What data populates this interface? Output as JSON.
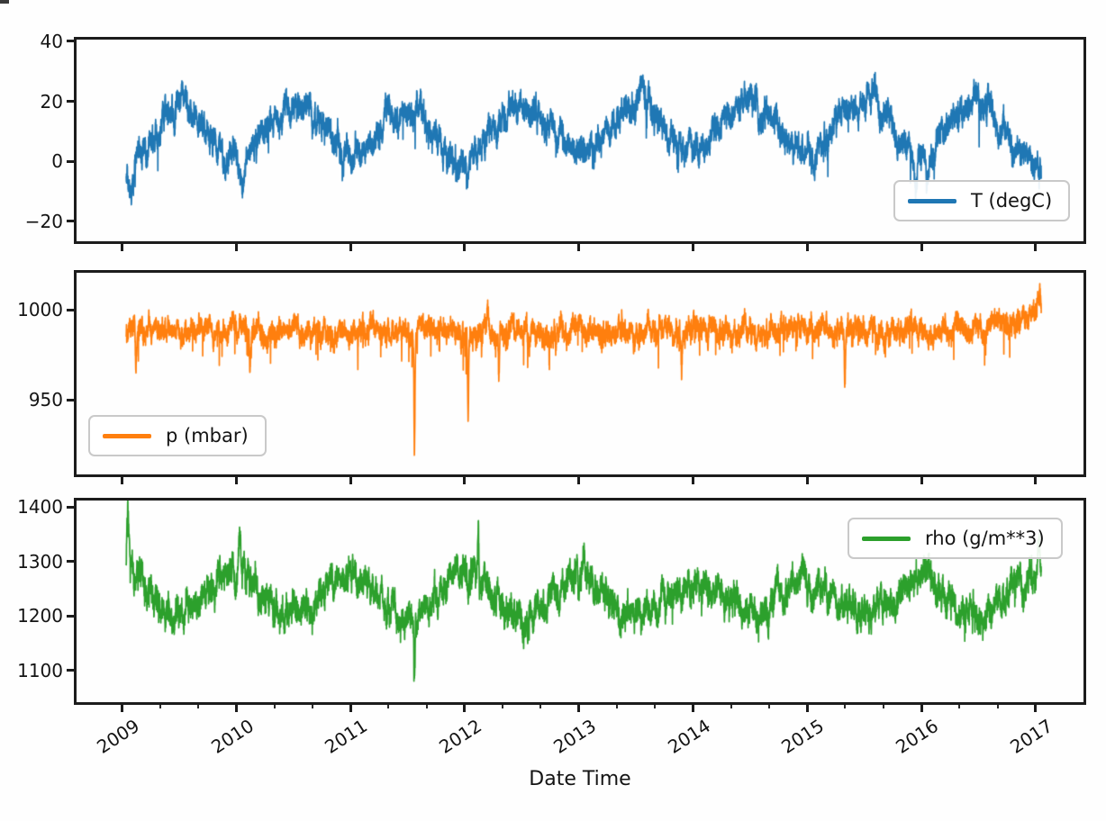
{
  "figure": {
    "background": "#fefefe",
    "spine_color": "#1c1c1c"
  },
  "x_axis": {
    "title": "Date Time",
    "ticks": [
      2009,
      2010,
      2011,
      2012,
      2013,
      2014,
      2015,
      2016,
      2017
    ],
    "labels": [
      "2009",
      "2010",
      "2011",
      "2012",
      "2013",
      "2014",
      "2015",
      "2016",
      "2017"
    ],
    "rotation_deg": 33,
    "minor_per_year": 3
  },
  "chart_data": [
    {
      "type": "line",
      "name": "T (degC)",
      "color": "#1f77b4",
      "legend": {
        "label": "T (degC)",
        "position": "lower right"
      },
      "xlim": [
        2008.6,
        2017.42
      ],
      "ylim": [
        -26.7,
        40.6
      ],
      "yticks": [
        40,
        20,
        0,
        -20
      ],
      "ytick_labels": [
        "40",
        "20",
        "0",
        "−20"
      ],
      "x_start": 2009.035,
      "x_end": 2017.05,
      "n_points": 7000,
      "envelope_t": [
        2009.0,
        2009.5,
        2010.0,
        2010.5,
        2011.0,
        2011.5,
        2012.0,
        2012.5,
        2013.0,
        2013.5,
        2014.0,
        2014.5,
        2015.0,
        2015.5,
        2016.0,
        2016.5,
        2017.0
      ],
      "envelope_mid": [
        -3,
        18,
        0,
        19,
        2,
        18,
        1,
        19,
        2,
        19,
        4,
        19,
        3,
        20,
        2,
        19,
        -1
      ],
      "band_halfwidth": 8,
      "spike_prob": 0.006,
      "spike_mag": -9,
      "anomalies": [
        {
          "t": 2009.07,
          "dv": -12,
          "w": 0.025
        },
        {
          "t": 2010.05,
          "dv": -9,
          "w": 0.02
        },
        {
          "t": 2012.02,
          "dv": -8,
          "w": 0.02
        },
        {
          "t": 2015.95,
          "dv": -9,
          "w": 0.012
        },
        {
          "t": 2016.05,
          "dv": -8,
          "w": 0.015
        },
        {
          "t": 2013.55,
          "dv": 6,
          "w": 0.02
        },
        {
          "t": 2015.6,
          "dv": 7,
          "w": 0.02
        },
        {
          "t": 2009.55,
          "dv": 5,
          "w": 0.02
        }
      ]
    },
    {
      "type": "line",
      "name": "p (mbar)",
      "color": "#ff7f0e",
      "legend": {
        "label": "p (mbar)",
        "position": "lower left"
      },
      "xlim": [
        2008.6,
        2017.42
      ],
      "ylim": [
        908.5,
        1020.5
      ],
      "yticks": [
        1000,
        950
      ],
      "ytick_labels": [
        "1000",
        "950"
      ],
      "x_start": 2009.035,
      "x_end": 2017.05,
      "n_points": 7000,
      "envelope_t": [
        2009.0,
        2009.5,
        2010.0,
        2010.5,
        2011.0,
        2011.5,
        2012.0,
        2012.5,
        2013.0,
        2013.5,
        2014.0,
        2014.5,
        2015.0,
        2015.5,
        2016.0,
        2016.5,
        2017.0
      ],
      "envelope_mid": [
        989,
        988,
        988,
        988,
        987,
        988,
        987,
        988,
        988,
        988,
        989,
        987,
        989,
        988,
        989,
        989,
        996
      ],
      "band_halfwidth": 11,
      "spike_prob": 0.013,
      "spike_mag": -17,
      "anomalies": [
        {
          "t": 2009.12,
          "dv": -28,
          "w": 0.008
        },
        {
          "t": 2010.12,
          "dv": -20,
          "w": 0.008
        },
        {
          "t": 2011.56,
          "dv": -66,
          "w": 0.006
        },
        {
          "t": 2012.03,
          "dv": -42,
          "w": 0.007
        },
        {
          "t": 2012.3,
          "dv": -30,
          "w": 0.006
        },
        {
          "t": 2013.9,
          "dv": -18,
          "w": 0.007
        },
        {
          "t": 2015.33,
          "dv": -30,
          "w": 0.007
        },
        {
          "t": 2012.2,
          "dv": 14,
          "w": 0.01
        },
        {
          "t": 2017.03,
          "dv": 13,
          "w": 0.02
        }
      ]
    },
    {
      "type": "line",
      "name": "rho (g/m**3)",
      "color": "#2ca02c",
      "legend": {
        "label": "rho (g/m**3)",
        "position": "upper right"
      },
      "xlim": [
        2008.6,
        2017.42
      ],
      "ylim": [
        1042,
        1412
      ],
      "yticks": [
        1400,
        1300,
        1200,
        1100
      ],
      "ytick_labels": [
        "1400",
        "1300",
        "1200",
        "1100"
      ],
      "x_start": 2009.035,
      "x_end": 2017.05,
      "n_points": 7000,
      "envelope_t": [
        2009.0,
        2009.5,
        2010.0,
        2010.5,
        2011.0,
        2011.5,
        2012.0,
        2012.5,
        2013.0,
        2013.5,
        2014.0,
        2014.5,
        2015.0,
        2015.5,
        2016.0,
        2016.5,
        2017.0
      ],
      "envelope_mid": [
        1290,
        1200,
        1280,
        1200,
        1278,
        1195,
        1285,
        1200,
        1268,
        1205,
        1262,
        1205,
        1268,
        1198,
        1265,
        1200,
        1275
      ],
      "band_halfwidth": 48,
      "spike_prob": 0.008,
      "spike_mag": -40,
      "anomalies": [
        {
          "t": 2009.05,
          "dv": 95,
          "w": 0.01
        },
        {
          "t": 2010.03,
          "dv": 80,
          "w": 0.01
        },
        {
          "t": 2011.56,
          "dv": -115,
          "w": 0.006
        },
        {
          "t": 2012.12,
          "dv": 100,
          "w": 0.008
        },
        {
          "t": 2013.05,
          "dv": 30,
          "w": 0.012
        },
        {
          "t": 2016.06,
          "dv": 55,
          "w": 0.01
        },
        {
          "t": 2017.03,
          "dv": 50,
          "w": 0.015
        }
      ]
    }
  ]
}
